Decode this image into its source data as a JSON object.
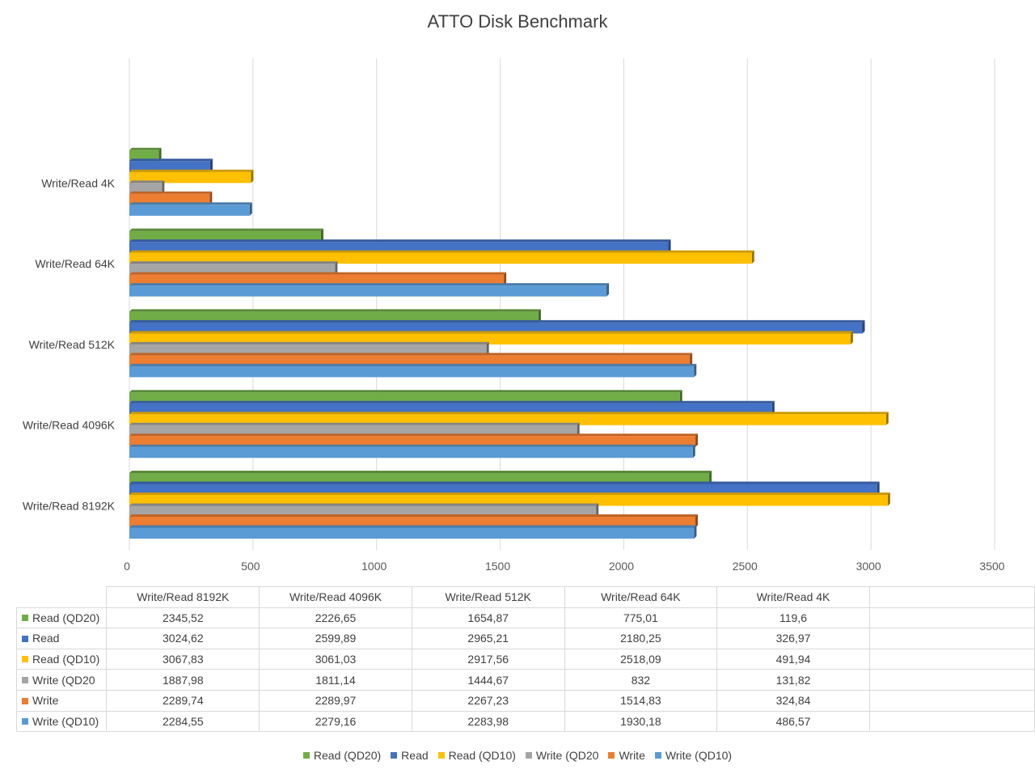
{
  "chart_data": {
    "type": "bar",
    "orientation": "horizontal",
    "title": "ATTO Disk Benchmark",
    "categories": [
      "Write/Read 8192K",
      "Write/Read 4096K",
      "Write/Read 512K",
      "Write/Read 64K",
      "Write/Read 4K"
    ],
    "series": [
      {
        "name": "Read (QD20)",
        "color": "#70ad47",
        "values": [
          2345.52,
          2226.65,
          1654.87,
          775.01,
          119.6
        ],
        "labels": [
          "2345,52",
          "2226,65",
          "1654,87",
          "775,01",
          "119,6"
        ]
      },
      {
        "name": "Read",
        "color": "#4472c4",
        "values": [
          3024.62,
          2599.89,
          2965.21,
          2180.25,
          326.97
        ],
        "labels": [
          "3024,62",
          "2599,89",
          "2965,21",
          "2180,25",
          "326,97"
        ]
      },
      {
        "name": "Read (QD10)",
        "color": "#ffc000",
        "values": [
          3067.83,
          3061.03,
          2917.56,
          2518.09,
          491.94
        ],
        "labels": [
          "3067,83",
          "3061,03",
          "2917,56",
          "2518,09",
          "491,94"
        ]
      },
      {
        "name": "Write (QD20",
        "color": "#a5a5a5",
        "values": [
          1887.98,
          1811.14,
          1444.67,
          832,
          131.82
        ],
        "labels": [
          "1887,98",
          "1811,14",
          "1444,67",
          "832",
          "131,82"
        ]
      },
      {
        "name": "Write",
        "color": "#ed7d31",
        "values": [
          2289.74,
          2289.97,
          2267.23,
          1514.83,
          324.84
        ],
        "labels": [
          "2289,74",
          "2289,97",
          "2267,23",
          "1514,83",
          "324,84"
        ]
      },
      {
        "name": "Write (QD10)",
        "color": "#5b9bd5",
        "values": [
          2284.55,
          2279.16,
          2283.98,
          1930.18,
          486.57
        ],
        "labels": [
          "2284,55",
          "2279,16",
          "2283,98",
          "1930,18",
          "486,57"
        ]
      }
    ],
    "xlim": [
      0,
      3500
    ],
    "x_ticks": [
      0,
      500,
      1000,
      1500,
      2000,
      2500,
      3000,
      3500
    ],
    "grid": true,
    "legend": "bottom",
    "data_table": true
  }
}
